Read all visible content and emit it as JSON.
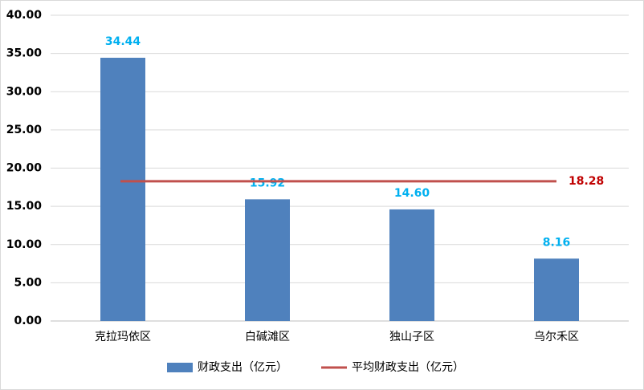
{
  "chart_data": {
    "type": "bar",
    "categories": [
      "克拉玛依区",
      "白碱滩区",
      "独山子区",
      "乌尔禾区"
    ],
    "series": [
      {
        "name": "财政支出（亿元）",
        "type": "bar",
        "color": "#4f81bd",
        "values": [
          34.44,
          15.92,
          14.6,
          8.16
        ],
        "value_labels": [
          "34.44",
          "15.92",
          "14.60",
          "8.16"
        ],
        "label_color": "#00b0f0"
      },
      {
        "name": "平均财政支出（亿元）",
        "type": "line",
        "color": "#c0504d",
        "values": [
          18.28,
          18.28,
          18.28,
          18.28
        ],
        "label_color": "#c00000"
      }
    ],
    "ylim": [
      0,
      40
    ],
    "yticks": [
      {
        "value": 0,
        "label": "0.00"
      },
      {
        "value": 5,
        "label": "5.00"
      },
      {
        "value": 10,
        "label": "10.00"
      },
      {
        "value": 15,
        "label": "15.00"
      },
      {
        "value": 20,
        "label": "20.00"
      },
      {
        "value": 25,
        "label": "25.00"
      },
      {
        "value": 30,
        "label": "30.00"
      },
      {
        "value": 35,
        "label": "35.00"
      },
      {
        "value": 40,
        "label": "40.00"
      }
    ],
    "grid": true,
    "legend": "bottom"
  }
}
